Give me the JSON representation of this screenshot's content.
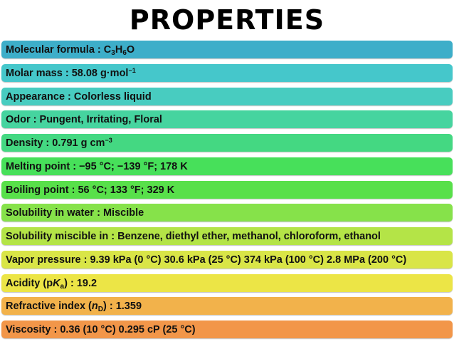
{
  "title": "PROPERTIES",
  "colors": {
    "row1": "#3daec9",
    "row2": "#45c7cb",
    "row3": "#48ccc0",
    "row4": "#46d49f",
    "row5": "#44d882",
    "row6": "#47e05a",
    "row7": "#58e04a",
    "row8": "#86e24a",
    "row9": "#b4e447",
    "row10": "#d9e547",
    "row11": "#ece546",
    "row12": "#f2b24b",
    "row13": "#f29649"
  },
  "rows": {
    "molecular_formula": {
      "label": "Molecular formula",
      "sep": " : ",
      "c": "C",
      "c_sub": "3",
      "h": "H",
      "h_sub": "6",
      "o": "O"
    },
    "molar_mass": {
      "label": "Molar mass",
      "sep": " : ",
      "value": "58.08 g·mol",
      "sup": "−1"
    },
    "appearance": {
      "label": "Appearance",
      "sep": " : ",
      "value": "Colorless liquid"
    },
    "odor": {
      "label": "Odor",
      "sep": " : ",
      "value": "Pungent, Irritating, Floral"
    },
    "density": {
      "label": "Density",
      "sep": " : ",
      "value": "0.791 g cm",
      "sup": "−3"
    },
    "melting_point": {
      "label": "Melting point",
      "sep": " : ",
      "value": "−95 °C; −139 °F; 178 K"
    },
    "boiling_point": {
      "label": "Boiling point",
      "sep": " : ",
      "value": "56 °C; 133 °F; 329 K"
    },
    "solubility_water": {
      "label": "Solubility in water",
      "sep": " : ",
      "value": "Miscible"
    },
    "solubility_miscible": {
      "label": "Solubility miscible in",
      "sep": " : ",
      "value": "Benzene, diethyl ether, methanol, chloroform, ethanol"
    },
    "vapor_pressure": {
      "label": "Vapor pressure",
      "sep": " : ",
      "value": "9.39 kPa (0 °C) 30.6 kPa (25 °C) 374 kPa (100 °C) 2.8 MPa (200 °C)"
    },
    "acidity": {
      "label_pre": "Acidity (p",
      "label_k": "K",
      "label_sub": "a",
      "label_post": ")",
      "sep": " : ",
      "value": "19.2"
    },
    "refractive_index": {
      "label_pre": "Refractive index (",
      "label_n": "n",
      "label_sub": "D",
      "label_post": ")",
      "sep": " : ",
      "value": "1.359"
    },
    "viscosity": {
      "label": "Viscosity",
      "sep": " : ",
      "value": "0.36 (10 °C) 0.295 cP (25 °C)"
    }
  }
}
